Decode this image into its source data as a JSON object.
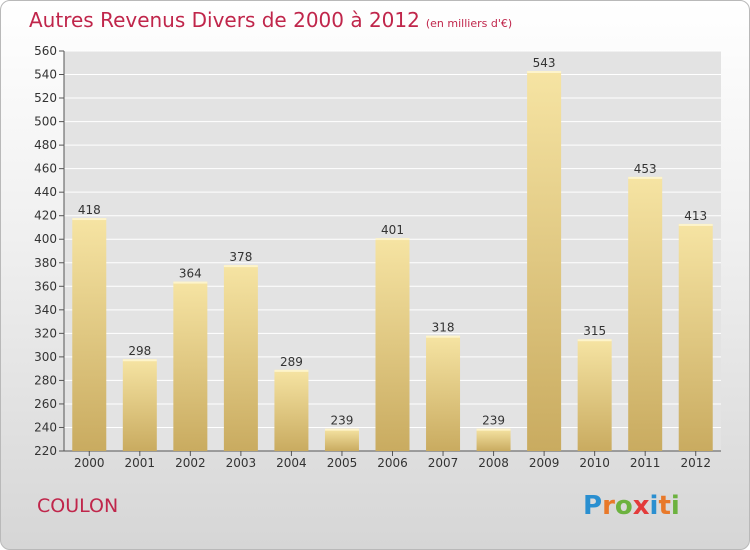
{
  "title": "Autres Revenus Divers de 2000 à 2012",
  "unit_note": "(en milliers d'€)",
  "commune": "COULON",
  "brand": {
    "letters": [
      "P",
      "r",
      "o",
      "x",
      "i",
      "t",
      "i"
    ],
    "colors": [
      "#2a8fd0",
      "#e8792a",
      "#6cb23f",
      "#e33b3b",
      "#2a8fd0",
      "#e8792a",
      "#6cb23f"
    ]
  },
  "colors": {
    "accent": "#c0264b",
    "bar_light": "#f6e4a3",
    "bar_dark": "#c9ab60",
    "plot_bg": "#e3e3e3",
    "grid": "#ffffff"
  },
  "chart_data": {
    "type": "bar",
    "categories": [
      "2000",
      "2001",
      "2002",
      "2003",
      "2004",
      "2005",
      "2006",
      "2007",
      "2008",
      "2009",
      "2010",
      "2011",
      "2012"
    ],
    "values": [
      418,
      298,
      364,
      378,
      289,
      239,
      401,
      318,
      239,
      543,
      315,
      453,
      413
    ],
    "ylim": [
      220,
      560
    ],
    "yticks": [
      220,
      240,
      260,
      280,
      300,
      320,
      340,
      360,
      380,
      400,
      420,
      440,
      460,
      480,
      500,
      520,
      540,
      560
    ],
    "grid": true,
    "data_labels": true
  }
}
